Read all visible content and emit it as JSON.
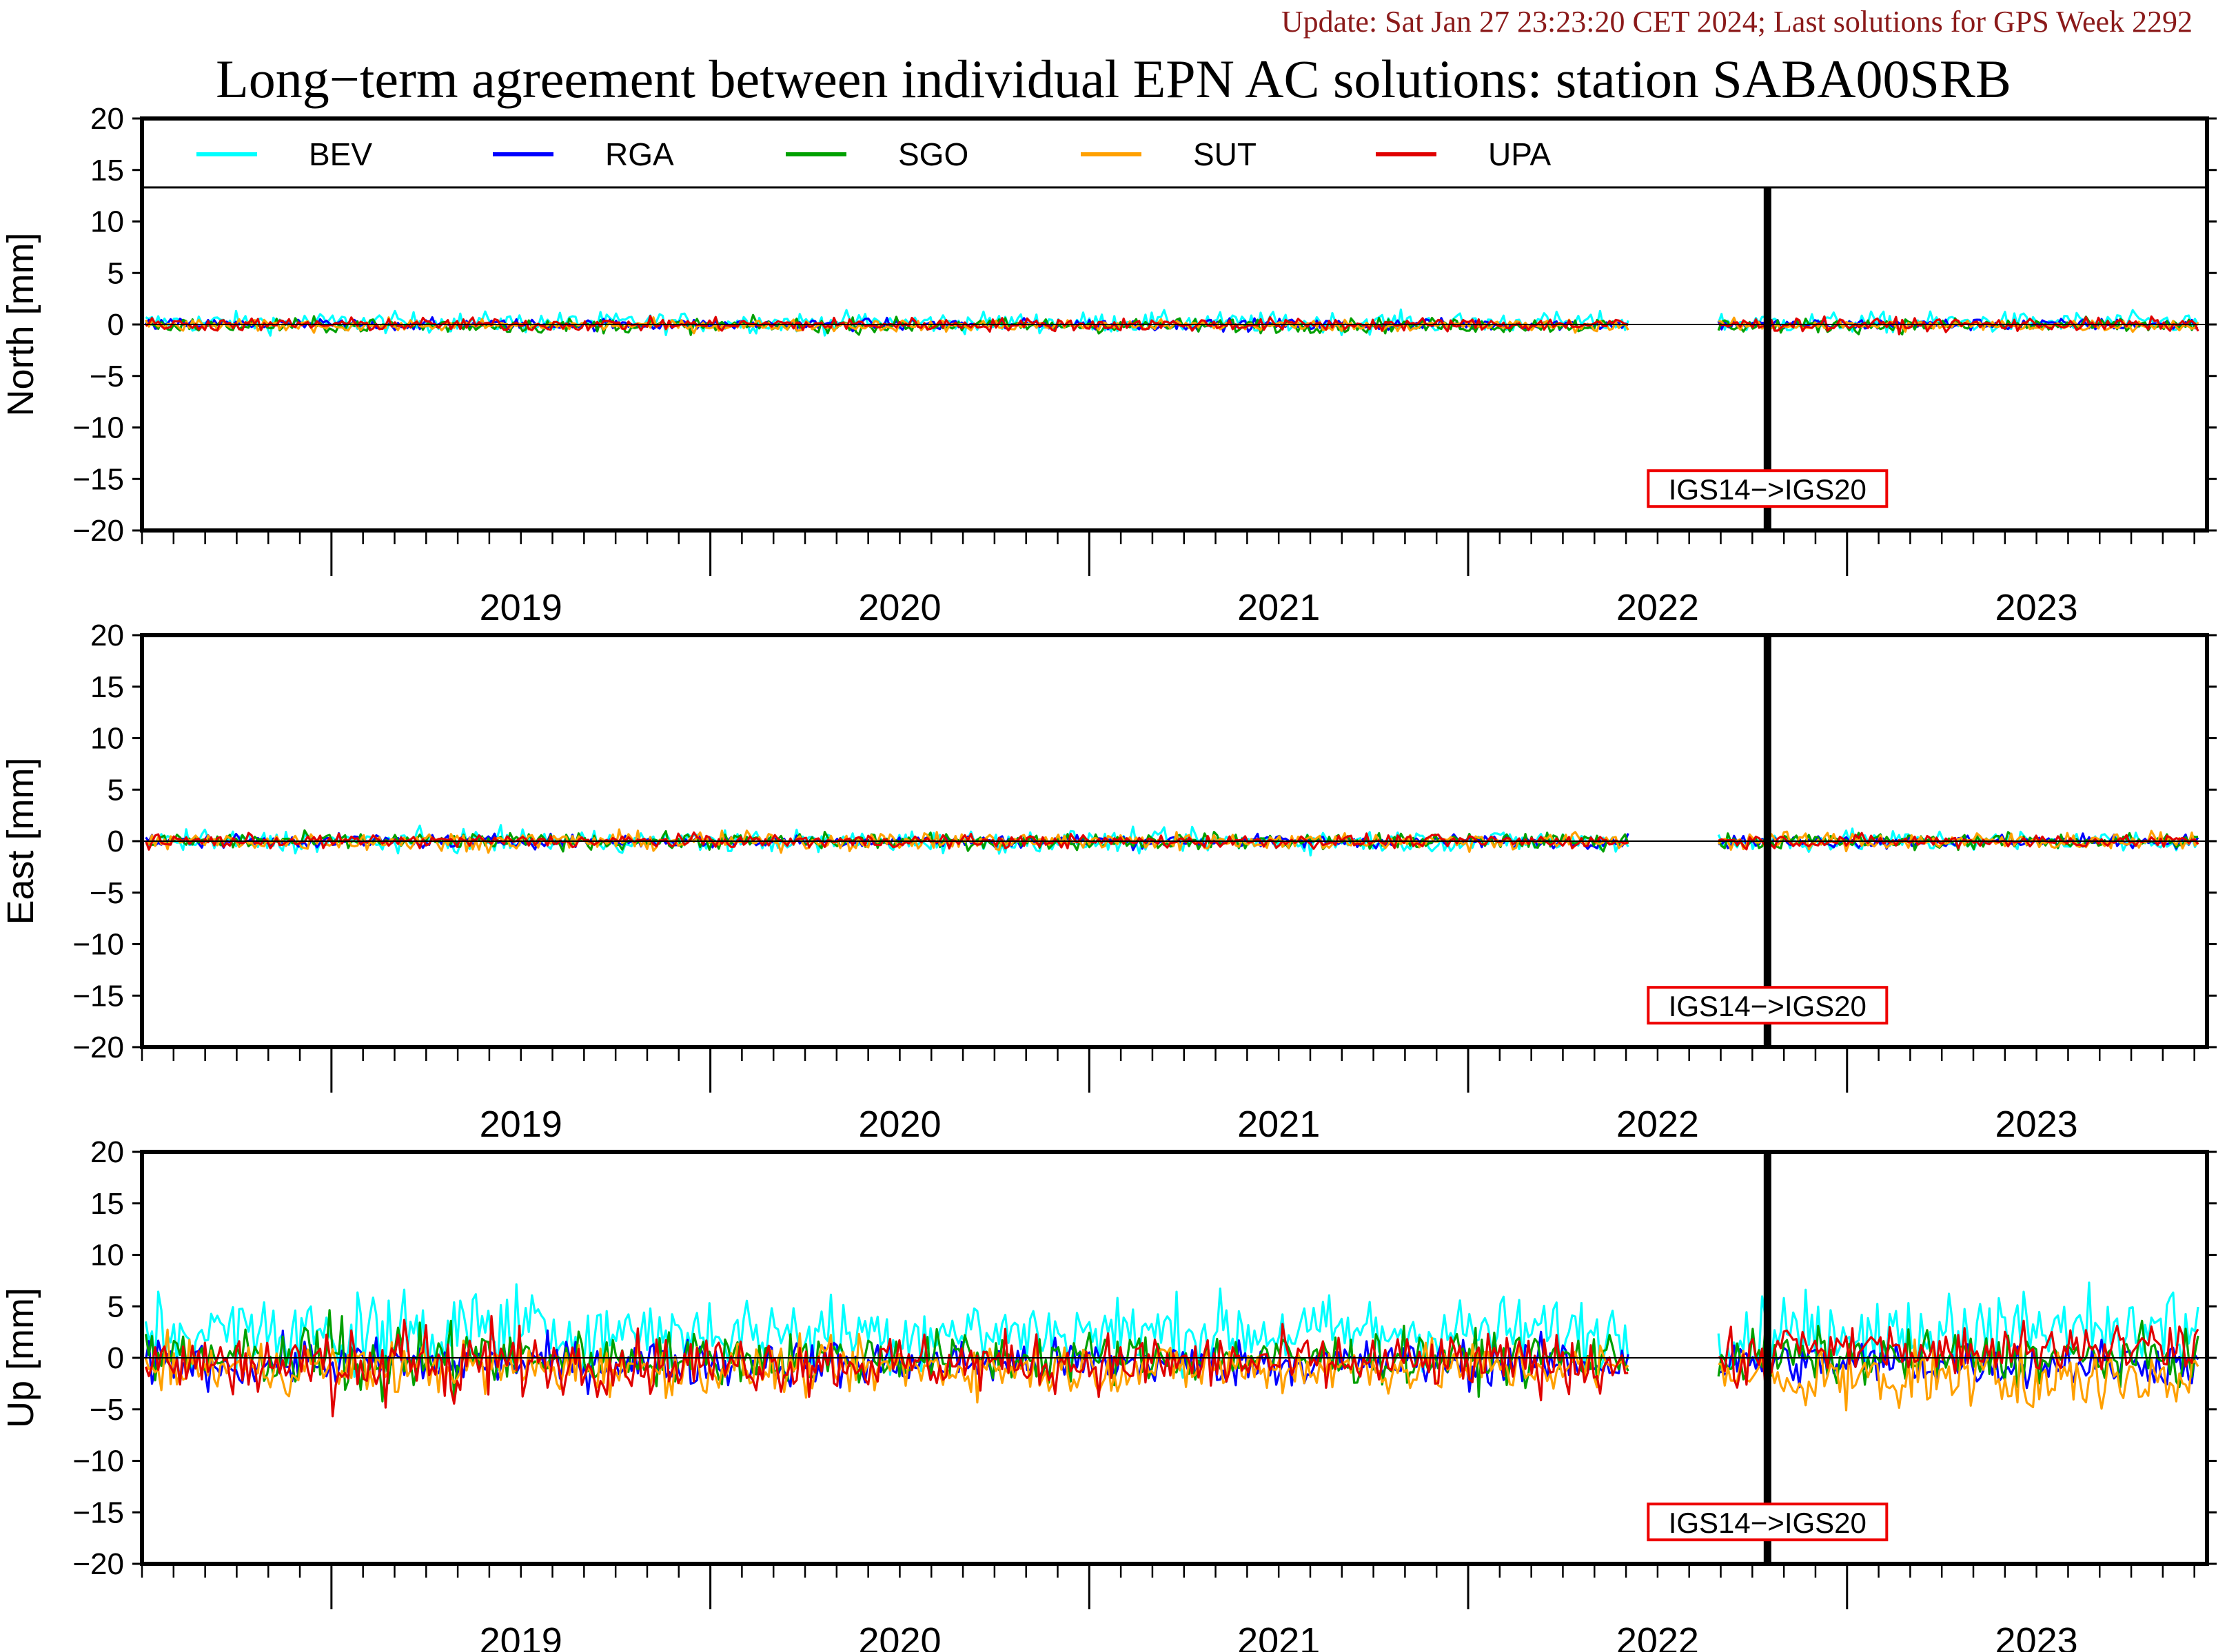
{
  "header": {
    "update": "Update: Sat Jan 27 23:23:20 CET 2024; Last solutions for GPS Week 2292",
    "title": "Long−term agreement between individual EPN AC solutions: station SABA00SRB"
  },
  "legend": [
    {
      "name": "BEV",
      "color": "#00ffff"
    },
    {
      "name": "RGA",
      "color": "#0000ff"
    },
    {
      "name": "SGO",
      "color": "#00a000"
    },
    {
      "name": "SUT",
      "color": "#ffa000"
    },
    {
      "name": "UPA",
      "color": "#e00000"
    }
  ],
  "annotation": "IGS14−>IGS20",
  "chart_data": [
    {
      "type": "line",
      "ylabel": "North [mm]",
      "ylim": [
        -20,
        20
      ],
      "yticks": [
        20,
        15,
        10,
        5,
        0,
        -5,
        -10,
        -15,
        -20
      ],
      "xlim": [
        2018.5,
        2023.95
      ],
      "year_labels": [
        "2019",
        "2020",
        "2021",
        "2022",
        "2023"
      ],
      "frame_change_year": 2022.79,
      "legend_position": "top",
      "noise_mm": {
        "BEV": 0.7,
        "RGA": 0.4,
        "SGO": 0.5,
        "SUT": 0.4,
        "UPA": 0.45
      },
      "offset_mm": {
        "BEV": 0.2,
        "RGA": 0,
        "SGO": -0.1,
        "SUT": -0.1,
        "UPA": 0
      }
    },
    {
      "type": "line",
      "ylabel": "East [mm]",
      "ylim": [
        -20,
        20
      ],
      "yticks": [
        20,
        15,
        10,
        5,
        0,
        -5,
        -10,
        -15,
        -20
      ],
      "xlim": [
        2018.5,
        2023.95
      ],
      "year_labels": [
        "2019",
        "2020",
        "2021",
        "2022",
        "2023"
      ],
      "frame_change_year": 2022.79,
      "noise_mm": {
        "BEV": 0.75,
        "RGA": 0.45,
        "SGO": 0.55,
        "SUT": 0.6,
        "UPA": 0.45
      },
      "offset_mm": {
        "BEV": 0,
        "RGA": 0,
        "SGO": 0,
        "SUT": 0,
        "UPA": 0
      }
    },
    {
      "type": "line",
      "ylabel": "Up [mm]",
      "ylim": [
        -20,
        20
      ],
      "yticks": [
        20,
        15,
        10,
        5,
        0,
        -5,
        -10,
        -15,
        -20
      ],
      "xlim": [
        2018.5,
        2023.95
      ],
      "year_labels": [
        "2019",
        "2020",
        "2021",
        "2022",
        "2023"
      ],
      "frame_change_year": 2022.79,
      "noise_mm": {
        "BEV": 2.5,
        "RGA": 1.6,
        "SGO": 1.8,
        "SUT": 1.8,
        "UPA": 2.0
      },
      "offset_mm": {
        "BEV": 2.5,
        "RGA": -0.5,
        "SGO": 0,
        "SUT": -1,
        "UPA": -0.5
      }
    }
  ]
}
